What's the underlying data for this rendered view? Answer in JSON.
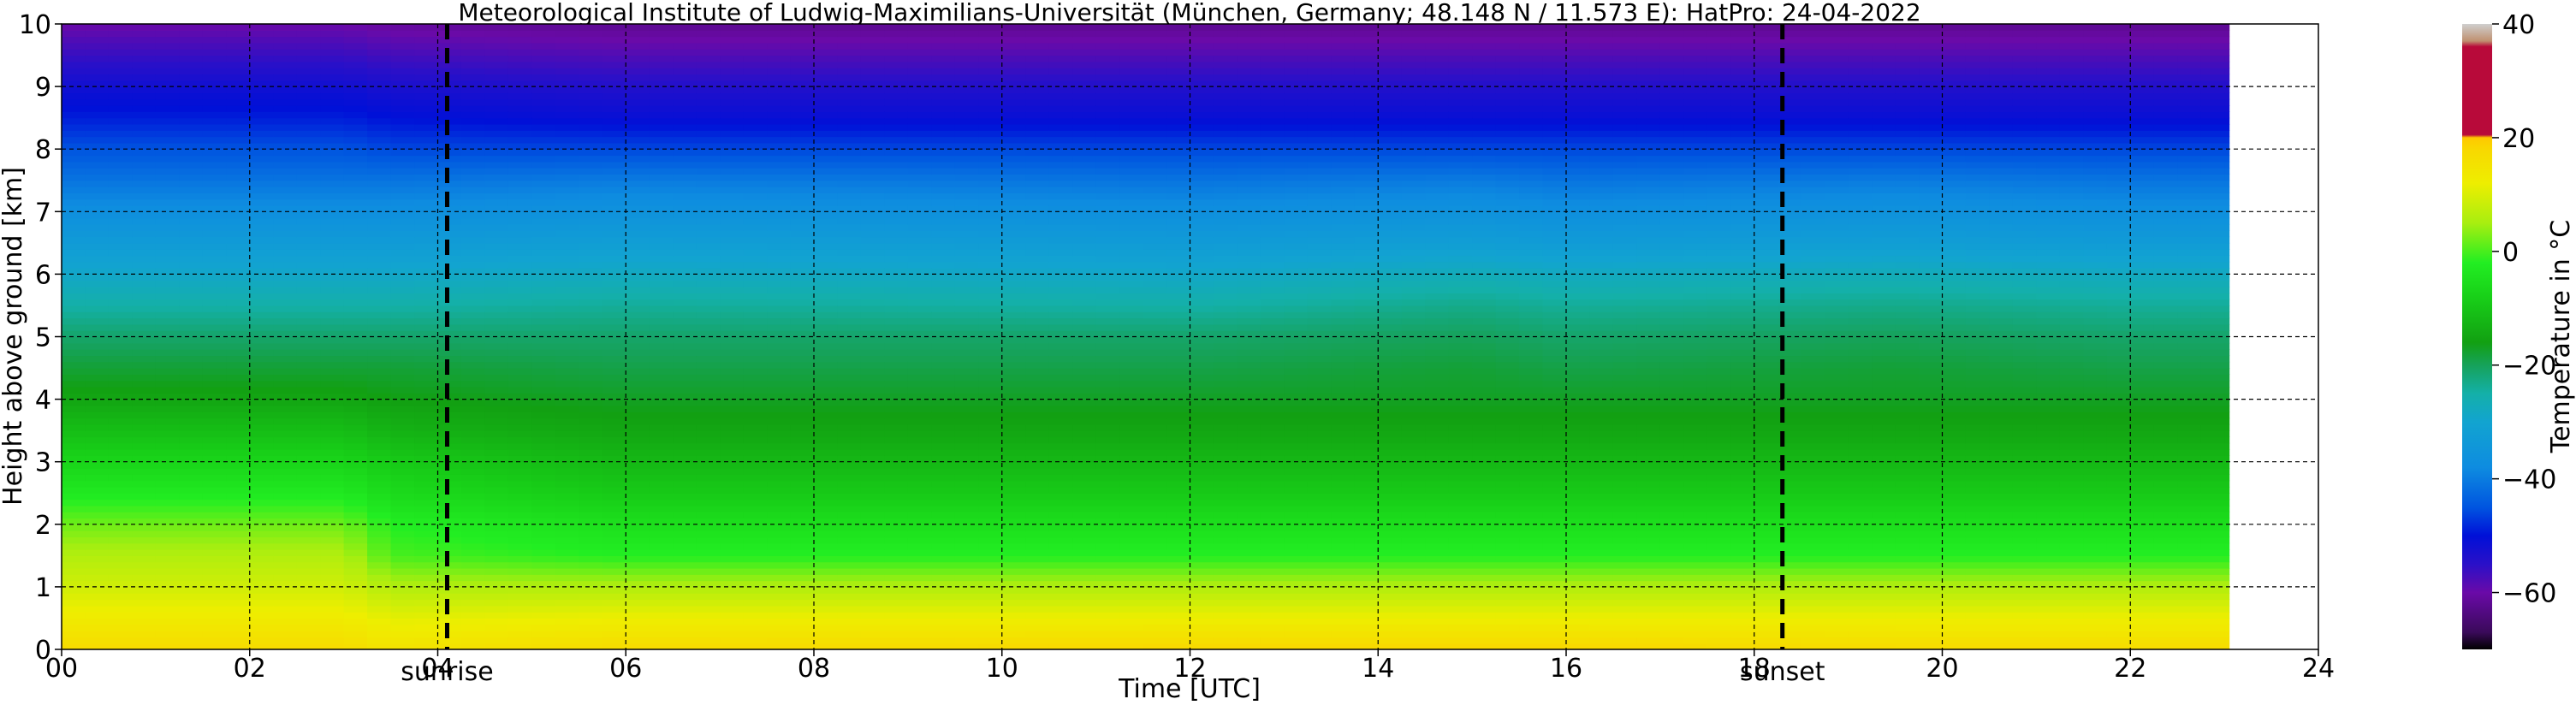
{
  "chart_data": {
    "type": "heatmap",
    "title": "Meteorological Institute of Ludwig-Maximilians-Universität (München, Germany; 48.148 N / 11.573 E):    HatPro: 24-04-2022",
    "xlabel": "Time [UTC]",
    "ylabel": "Height above ground [km]",
    "xlim": [
      0,
      24
    ],
    "ylim": [
      0,
      10
    ],
    "data_end_hour": 23.05,
    "x_ticks": [
      {
        "value": 0,
        "label": "00"
      },
      {
        "value": 2,
        "label": "02"
      },
      {
        "value": 4,
        "label": "04"
      },
      {
        "value": 6,
        "label": "06"
      },
      {
        "value": 8,
        "label": "08"
      },
      {
        "value": 10,
        "label": "10"
      },
      {
        "value": 12,
        "label": "12"
      },
      {
        "value": 14,
        "label": "14"
      },
      {
        "value": 16,
        "label": "16"
      },
      {
        "value": 18,
        "label": "18"
      },
      {
        "value": 20,
        "label": "20"
      },
      {
        "value": 22,
        "label": "22"
      },
      {
        "value": 24,
        "label": "24"
      }
    ],
    "y_ticks": [
      {
        "value": 0,
        "label": "0"
      },
      {
        "value": 1,
        "label": "1"
      },
      {
        "value": 2,
        "label": "2"
      },
      {
        "value": 3,
        "label": "3"
      },
      {
        "value": 4,
        "label": "4"
      },
      {
        "value": 5,
        "label": "5"
      },
      {
        "value": 6,
        "label": "6"
      },
      {
        "value": 7,
        "label": "7"
      },
      {
        "value": 8,
        "label": "8"
      },
      {
        "value": 9,
        "label": "9"
      },
      {
        "value": 10,
        "label": "10"
      }
    ],
    "grid": true,
    "events": [
      {
        "label": "sunrise",
        "hour": 4.1
      },
      {
        "label": "sunset",
        "hour": 18.3
      }
    ],
    "colorbar": {
      "label": "Temperature in °C",
      "vmin": -70,
      "vmax": 40,
      "ticks": [
        {
          "value": 40,
          "label": "40"
        },
        {
          "value": 20,
          "label": "20"
        },
        {
          "value": 0,
          "label": "0"
        },
        {
          "value": -20,
          "label": "−20"
        },
        {
          "value": -40,
          "label": "−40"
        },
        {
          "value": -60,
          "label": "−60"
        }
      ],
      "stops": [
        {
          "value": -70,
          "color": "#000000"
        },
        {
          "value": -67,
          "color": "#3a0a5a"
        },
        {
          "value": -60,
          "color": "#6a0aa8"
        },
        {
          "value": -55,
          "color": "#2a10c8"
        },
        {
          "value": -50,
          "color": "#0010d8"
        },
        {
          "value": -45,
          "color": "#0055e0"
        },
        {
          "value": -38,
          "color": "#0e8ce0"
        },
        {
          "value": -30,
          "color": "#12a4d0"
        },
        {
          "value": -25,
          "color": "#14b0a8"
        },
        {
          "value": -20,
          "color": "#16a25a"
        },
        {
          "value": -16,
          "color": "#12a012"
        },
        {
          "value": -8,
          "color": "#18d018"
        },
        {
          "value": -2,
          "color": "#22ee22"
        },
        {
          "value": 5,
          "color": "#a8ee10"
        },
        {
          "value": 12,
          "color": "#eeee00"
        },
        {
          "value": 18,
          "color": "#f8d800"
        },
        {
          "value": 20,
          "color": "#ffc800"
        },
        {
          "value": 20.5,
          "color": "#b80a3a"
        },
        {
          "value": 36,
          "color": "#b80a3a"
        },
        {
          "value": 37,
          "color": "#c09070"
        },
        {
          "value": 40,
          "color": "#cfcfcf"
        }
      ]
    },
    "temperature_profile": {
      "heights_km": [
        0,
        0.5,
        1.0,
        1.5,
        2.0,
        2.5,
        3.0,
        3.5,
        4.0,
        4.5,
        5.0,
        5.5,
        6.0,
        6.5,
        7.0,
        7.5,
        8.0,
        8.5,
        9.0,
        9.5,
        10.0
      ],
      "times_h": [
        0,
        3,
        3.5,
        6,
        12,
        15,
        16,
        19.5,
        22,
        23.05
      ],
      "values_c": [
        [
          17,
          17,
          15,
          17,
          18,
          18,
          18,
          17,
          17,
          17
        ],
        [
          13,
          13,
          11,
          12,
          12,
          12,
          12,
          12,
          12,
          12
        ],
        [
          9,
          9,
          6,
          6,
          6,
          6,
          6,
          6,
          6,
          6
        ],
        [
          6,
          6,
          0,
          -2,
          -2,
          -2,
          -2,
          -2,
          -2,
          -2
        ],
        [
          2,
          2,
          -2,
          -5,
          -5,
          -5,
          -5,
          -5,
          -5,
          -5
        ],
        [
          -3,
          -3,
          -6,
          -9,
          -9,
          -9,
          -9,
          -9,
          -9,
          -9
        ],
        [
          -7,
          -7,
          -9,
          -12,
          -12,
          -12,
          -12,
          -12,
          -12,
          -12
        ],
        [
          -11,
          -11,
          -13,
          -15,
          -15,
          -15,
          -15,
          -15,
          -15,
          -15
        ],
        [
          -15,
          -15,
          -16,
          -17,
          -17,
          -17,
          -17,
          -17,
          -17,
          -17
        ],
        [
          -18,
          -18,
          -18,
          -19,
          -19,
          -18,
          -19,
          -18,
          -19,
          -19
        ],
        [
          -21,
          -21,
          -21,
          -21,
          -21,
          -20,
          -21,
          -20,
          -21,
          -21
        ],
        [
          -25,
          -25,
          -25,
          -24,
          -25,
          -23,
          -24,
          -23,
          -24,
          -24
        ],
        [
          -29,
          -29,
          -29,
          -28,
          -29,
          -27,
          -28,
          -27,
          -28,
          -28
        ],
        [
          -33,
          -33,
          -33,
          -32,
          -33,
          -32,
          -33,
          -32,
          -33,
          -33
        ],
        [
          -37,
          -37,
          -37,
          -36,
          -37,
          -36,
          -37,
          -36,
          -37,
          -37
        ],
        [
          -41,
          -41,
          -41,
          -40,
          -41,
          -40,
          -41,
          -40,
          -41,
          -41
        ],
        [
          -45,
          -45,
          -46,
          -46,
          -46,
          -46,
          -46,
          -46,
          -46,
          -46
        ],
        [
          -49,
          -49,
          -50,
          -51,
          -51,
          -51,
          -51,
          -51,
          -51,
          -51
        ],
        [
          -52,
          -52,
          -53,
          -54,
          -54,
          -54,
          -54,
          -54,
          -54,
          -54
        ],
        [
          -56,
          -56,
          -57,
          -58,
          -58,
          -58,
          -58,
          -58,
          -58,
          -58
        ],
        [
          -60,
          -60,
          -61,
          -62,
          -62,
          -62,
          -62,
          -62,
          -62,
          -62
        ]
      ]
    }
  }
}
